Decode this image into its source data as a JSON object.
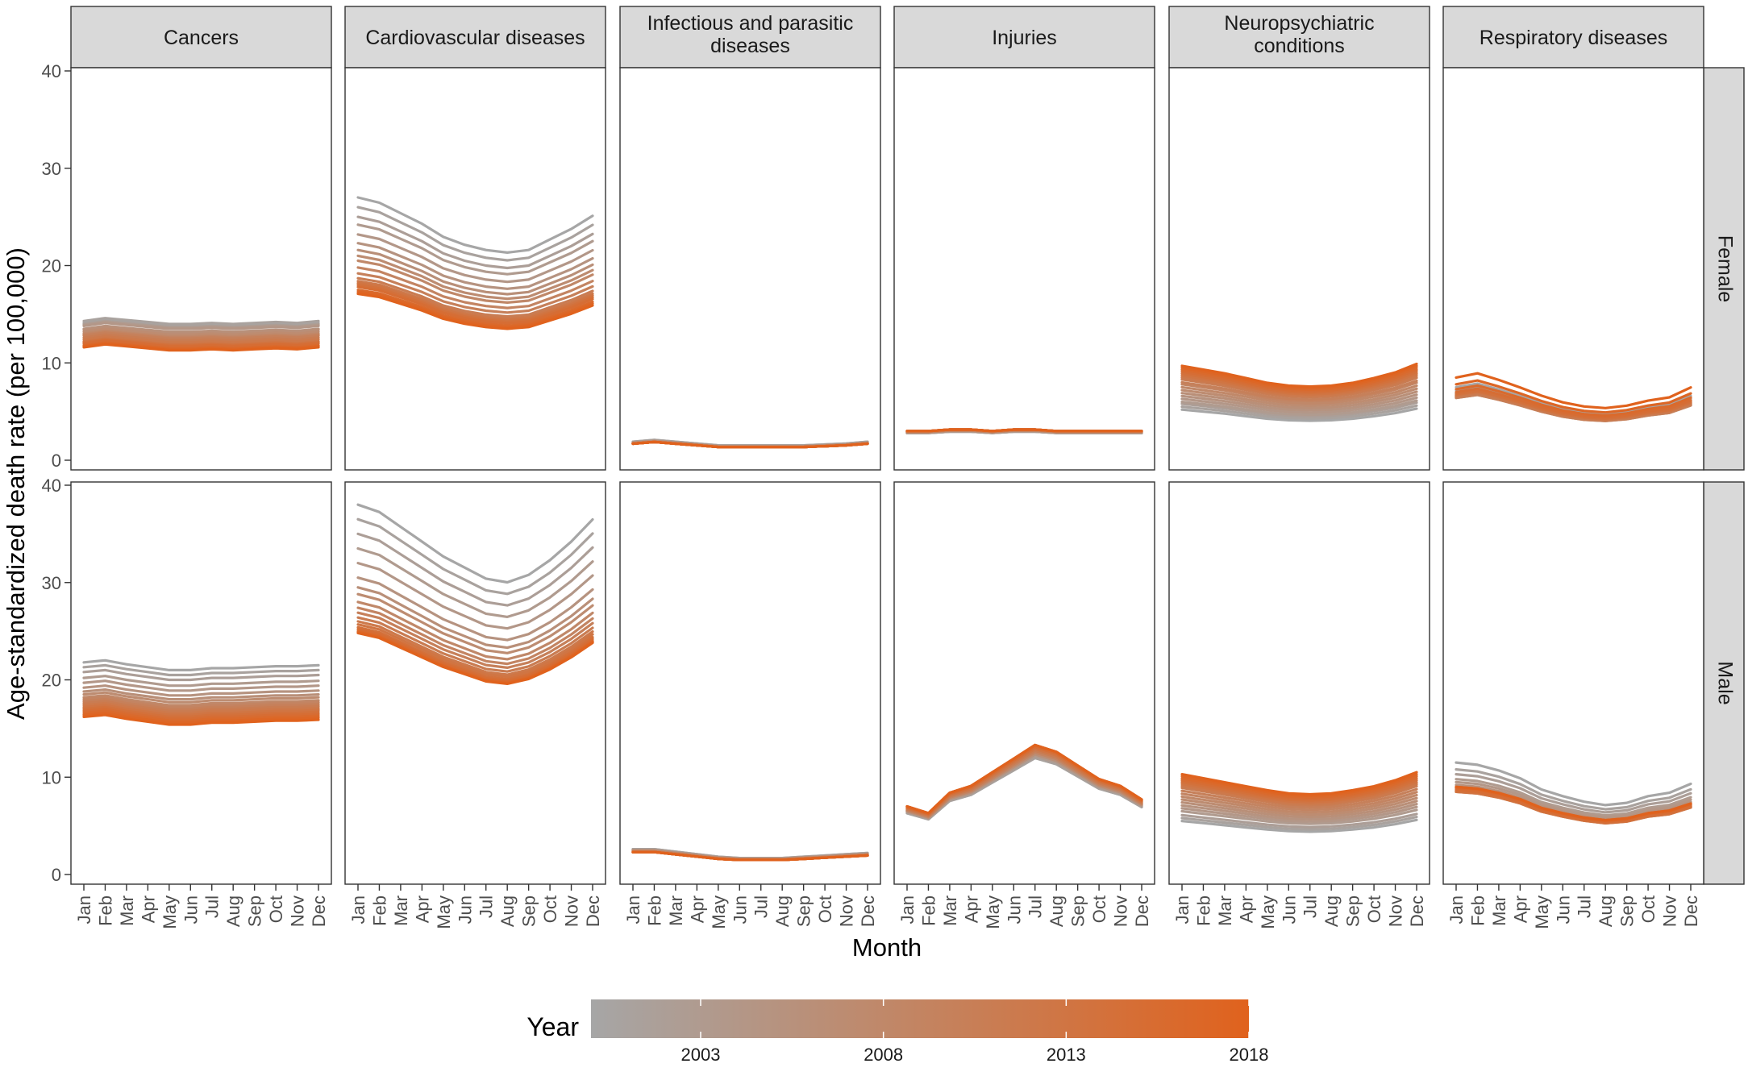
{
  "chart_data": {
    "type": "line",
    "facet_columns": [
      {
        "key": "cancers",
        "lines": [
          "Cancers"
        ]
      },
      {
        "key": "cardio",
        "lines": [
          "Cardiovascular diseases"
        ]
      },
      {
        "key": "infect",
        "lines": [
          "Infectious and parasitic",
          "diseases"
        ]
      },
      {
        "key": "injuries",
        "lines": [
          "Injuries"
        ]
      },
      {
        "key": "neuro",
        "lines": [
          "Neuropsychiatric",
          "conditions"
        ]
      },
      {
        "key": "resp",
        "lines": [
          "Respiratory diseases"
        ]
      }
    ],
    "facet_rows": [
      "Female",
      "Male"
    ],
    "months": [
      "Jan",
      "Feb",
      "Mar",
      "Apr",
      "May",
      "Jun",
      "Jul",
      "Aug",
      "Sep",
      "Oct",
      "Nov",
      "Dec"
    ],
    "xlabel": "Month",
    "ylabel": "Age-standardized death rate (per 100,000)",
    "ylim": [
      0,
      40
    ],
    "yticks": [
      0,
      10,
      20,
      30,
      40
    ],
    "legend": {
      "title": "Year",
      "range": [
        2000,
        2018
      ],
      "ticks": [
        2003,
        2008,
        2013,
        2018
      ],
      "low_color": "#a6a6a6",
      "high_color": "#e0621d",
      "position": "bottom"
    },
    "years": [
      2000,
      2001,
      2002,
      2003,
      2004,
      2005,
      2006,
      2007,
      2008,
      2009,
      2010,
      2011,
      2012,
      2013,
      2014,
      2015,
      2016,
      2017,
      2018
    ],
    "series": {
      "Female": {
        "cancers": {
          "start": [
            14.1,
            14.3,
            14.0,
            13.9,
            13.8,
            13.5,
            13.4,
            13.2,
            13.0,
            12.9,
            12.8,
            12.6,
            12.4,
            12.2,
            12.1,
            12.0,
            11.8,
            11.7,
            11.6
          ],
          "shape": [
            0,
            0.3,
            0.1,
            -0.1,
            -0.3,
            -0.3,
            -0.2,
            -0.3,
            -0.2,
            -0.1,
            -0.2,
            0
          ]
        },
        "cardio": {
          "start": [
            27.0,
            26.0,
            25.0,
            24.2,
            23.2,
            22.3,
            21.6,
            21.0,
            20.5,
            19.8,
            19.2,
            18.7,
            18.4,
            18.2,
            18.0,
            17.8,
            17.5,
            17.3,
            17.1
          ],
          "shape": [
            0,
            -0.02,
            -0.06,
            -0.1,
            -0.15,
            -0.18,
            -0.2,
            -0.21,
            -0.2,
            -0.16,
            -0.12,
            -0.07
          ]
        },
        "infect": {
          "start": [
            1.9,
            1.9,
            1.8,
            1.8,
            1.8,
            1.8,
            1.8,
            1.7,
            1.7,
            1.7,
            1.7,
            1.7,
            1.7,
            1.7,
            1.7,
            1.7,
            1.7,
            1.7,
            1.7
          ],
          "shape": [
            0,
            0.1,
            0,
            -0.1,
            -0.2,
            -0.2,
            -0.2,
            -0.2,
            -0.2,
            -0.15,
            -0.1,
            0
          ]
        },
        "injuries": {
          "start": [
            2.8,
            2.8,
            2.8,
            2.8,
            2.9,
            2.9,
            2.9,
            2.9,
            2.9,
            2.9,
            3.0,
            3.0,
            3.0,
            3.0,
            3.0,
            3.0,
            3.0,
            3.0,
            3.0
          ],
          "shape": [
            0,
            0,
            0.05,
            0.05,
            0,
            0.05,
            0.05,
            0,
            0,
            0,
            0,
            0
          ]
        },
        "neuro": {
          "start": [
            5.2,
            5.5,
            5.8,
            6.0,
            6.3,
            6.6,
            6.9,
            7.2,
            7.5,
            7.8,
            8.0,
            8.3,
            8.5,
            8.7,
            8.9,
            9.1,
            9.3,
            9.5,
            9.7
          ],
          "shape": [
            0,
            -0.04,
            -0.08,
            -0.13,
            -0.18,
            -0.21,
            -0.22,
            -0.21,
            -0.18,
            -0.13,
            -0.07,
            0.02
          ]
        },
        "resp": {
          "start": [
            7.5,
            7.2,
            7.0,
            6.8,
            6.9,
            6.6,
            6.5,
            6.7,
            6.6,
            6.4,
            6.4,
            6.5,
            6.6,
            6.7,
            6.8,
            7.0,
            7.3,
            7.8,
            8.5
          ],
          "shape": [
            0,
            0.05,
            -0.03,
            -0.12,
            -0.22,
            -0.3,
            -0.35,
            -0.37,
            -0.34,
            -0.28,
            -0.24,
            -0.12
          ]
        }
      },
      "Male": {
        "cancers": {
          "start": [
            21.8,
            21.3,
            20.8,
            20.2,
            19.7,
            19.2,
            18.8,
            18.5,
            18.2,
            18.0,
            17.8,
            17.6,
            17.4,
            17.2,
            17.0,
            16.8,
            16.6,
            16.4,
            16.2
          ],
          "shape": [
            0,
            0.2,
            -0.2,
            -0.5,
            -0.8,
            -0.8,
            -0.6,
            -0.6,
            -0.5,
            -0.4,
            -0.4,
            -0.3
          ]
        },
        "cardio": {
          "start": [
            38.0,
            36.5,
            35.0,
            33.5,
            32.0,
            30.5,
            29.5,
            28.8,
            28.0,
            27.4,
            26.9,
            26.4,
            26.0,
            25.7,
            25.4,
            25.2,
            25.0,
            24.9,
            24.8
          ],
          "shape": [
            0,
            -0.02,
            -0.06,
            -0.1,
            -0.14,
            -0.17,
            -0.2,
            -0.21,
            -0.19,
            -0.15,
            -0.1,
            -0.04
          ]
        },
        "infect": {
          "start": [
            2.6,
            2.6,
            2.5,
            2.5,
            2.5,
            2.5,
            2.4,
            2.4,
            2.4,
            2.4,
            2.3,
            2.3,
            2.3,
            2.3,
            2.3,
            2.3,
            2.3,
            2.3,
            2.3
          ],
          "shape": [
            0,
            0,
            -0.1,
            -0.2,
            -0.3,
            -0.35,
            -0.35,
            -0.35,
            -0.3,
            -0.25,
            -0.2,
            -0.15
          ]
        },
        "injuries": {
          "start": [
            6.3,
            6.3,
            6.4,
            6.4,
            6.5,
            6.5,
            6.5,
            6.6,
            6.6,
            6.6,
            6.7,
            6.7,
            6.8,
            6.8,
            6.9,
            6.9,
            7.0,
            7.0,
            7.0
          ],
          "shape": [
            0,
            -0.1,
            0.2,
            0.3,
            0.5,
            0.7,
            0.9,
            0.8,
            0.6,
            0.4,
            0.3,
            0.1
          ]
        },
        "neuro": {
          "start": [
            5.5,
            5.8,
            6.1,
            6.5,
            6.8,
            7.1,
            7.4,
            7.7,
            8.0,
            8.3,
            8.6,
            8.9,
            9.1,
            9.3,
            9.5,
            9.7,
            9.9,
            10.1,
            10.3
          ],
          "shape": [
            0,
            -0.04,
            -0.08,
            -0.12,
            -0.16,
            -0.19,
            -0.2,
            -0.19,
            -0.16,
            -0.12,
            -0.06,
            0.02
          ]
        },
        "resp": {
          "start": [
            11.5,
            10.8,
            10.3,
            9.8,
            9.5,
            9.2,
            9.0,
            8.9,
            8.8,
            8.7,
            8.6,
            8.6,
            8.5,
            8.5,
            8.6,
            8.7,
            8.9,
            9.0,
            9.0
          ],
          "shape": [
            0,
            -0.02,
            -0.07,
            -0.14,
            -0.24,
            -0.3,
            -0.35,
            -0.38,
            -0.36,
            -0.3,
            -0.27,
            -0.19
          ]
        }
      }
    }
  }
}
